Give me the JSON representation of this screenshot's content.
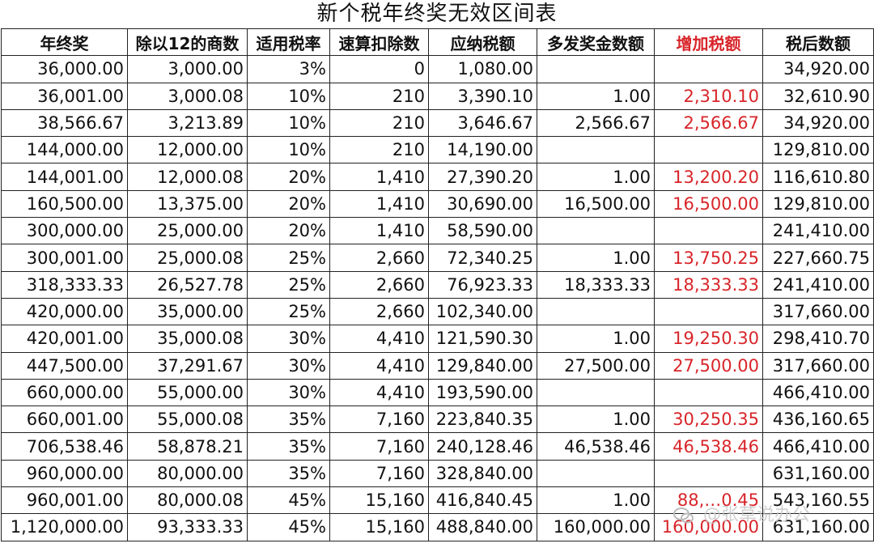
{
  "title": "新个税年终奖无效区间表",
  "headers": [
    "年终奖",
    "除以12的商数",
    "适用税率",
    "速算扣除数",
    "应纳税额",
    "多发奖金数额",
    "增加税额",
    "税后数额"
  ],
  "rows": [
    [
      "36,000.00",
      "3,000.00",
      "3%",
      "0",
      "1,080.00",
      "",
      "",
      "34,920.00"
    ],
    [
      "36,001.00",
      "3,000.08",
      "10%",
      "210",
      "3,390.10",
      "1.00",
      "2,310.10",
      "32,610.90"
    ],
    [
      "38,566.67",
      "3,213.89",
      "10%",
      "210",
      "3,646.67",
      "2,566.67",
      "2,566.67",
      "34,920.00"
    ],
    [
      "144,000.00",
      "12,000.00",
      "10%",
      "210",
      "14,190.00",
      "",
      "",
      "129,810.00"
    ],
    [
      "144,001.00",
      "12,000.08",
      "20%",
      "1,410",
      "27,390.20",
      "1.00",
      "13,200.20",
      "116,610.80"
    ],
    [
      "160,500.00",
      "13,375.00",
      "20%",
      "1,410",
      "30,690.00",
      "16,500.00",
      "16,500.00",
      "129,810.00"
    ],
    [
      "300,000.00",
      "25,000.00",
      "20%",
      "1,410",
      "58,590.00",
      "",
      "",
      "241,410.00"
    ],
    [
      "300,001.00",
      "25,000.08",
      "25%",
      "2,660",
      "72,340.25",
      "1.00",
      "13,750.25",
      "227,660.75"
    ],
    [
      "318,333.33",
      "26,527.78",
      "25%",
      "2,660",
      "76,923.33",
      "18,333.33",
      "18,333.33",
      "241,410.00"
    ],
    [
      "420,000.00",
      "35,000.00",
      "25%",
      "2,660",
      "102,340.00",
      "",
      "",
      "317,660.00"
    ],
    [
      "420,001.00",
      "35,000.08",
      "30%",
      "4,410",
      "121,590.30",
      "1.00",
      "19,250.30",
      "298,410.70"
    ],
    [
      "447,500.00",
      "37,291.67",
      "30%",
      "4,410",
      "129,840.00",
      "27,500.00",
      "27,500.00",
      "317,660.00"
    ],
    [
      "660,000.00",
      "55,000.00",
      "30%",
      "4,410",
      "193,590.00",
      "",
      "",
      "466,410.00"
    ],
    [
      "660,001.00",
      "55,000.08",
      "35%",
      "7,160",
      "223,840.35",
      "1.00",
      "30,250.35",
      "436,160.65"
    ],
    [
      "706,538.46",
      "58,878.21",
      "35%",
      "7,160",
      "240,128.46",
      "46,538.46",
      "46,538.46",
      "466,410.00"
    ],
    [
      "960,000.00",
      "80,000.00",
      "35%",
      "7,160",
      "328,840.00",
      "",
      "",
      "631,160.00"
    ],
    [
      "960,001.00",
      "80,000.08",
      "45%",
      "15,160",
      "416,840.45",
      "1.00",
      "88,…0.45",
      "543,160.55"
    ],
    [
      "1,120,000.00",
      "93,333.33",
      "45%",
      "15,160",
      "488,840.00",
      "160,000.00",
      "160,000.00",
      "631,160.00"
    ]
  ],
  "watermark": "@张草说办公",
  "colors": {
    "increase_tax": "#d8252a",
    "border": "#222222"
  }
}
